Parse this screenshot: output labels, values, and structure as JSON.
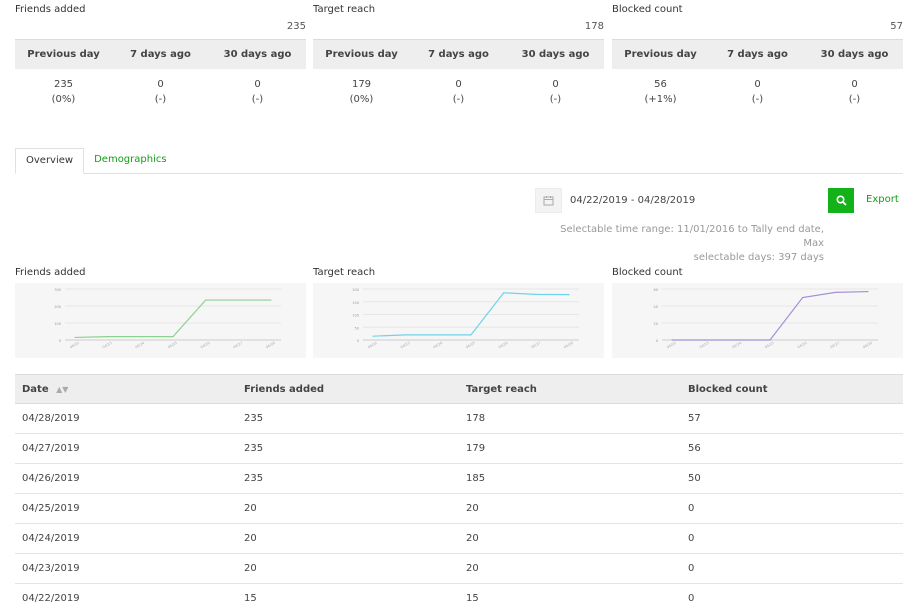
{
  "summary": {
    "headers": [
      "Previous day",
      "7 days ago",
      "30 days ago"
    ],
    "cards": [
      {
        "title": "Friends added",
        "total": "235",
        "values": [
          {
            "v": "235",
            "p": "(0%)"
          },
          {
            "v": "0",
            "p": "(-)"
          },
          {
            "v": "0",
            "p": "(-)"
          }
        ]
      },
      {
        "title": "Target reach",
        "total": "178",
        "values": [
          {
            "v": "179",
            "p": "(0%)"
          },
          {
            "v": "0",
            "p": "(-)"
          },
          {
            "v": "0",
            "p": "(-)"
          }
        ]
      },
      {
        "title": "Blocked count",
        "total": "57",
        "values": [
          {
            "v": "56",
            "p": "(+1%)"
          },
          {
            "v": "0",
            "p": "(-)"
          },
          {
            "v": "0",
            "p": "(-)"
          }
        ]
      }
    ]
  },
  "tabs": {
    "overview": "Overview",
    "demographics": "Demographics"
  },
  "date_range": {
    "value": "04/22/2019 - 04/28/2019",
    "export": "Export",
    "note1": "Selectable time range: 11/01/2016 to Tally end date, Max",
    "note2": "selectable days: 397 days"
  },
  "colors": {
    "friends": "#8fd18f",
    "reach": "#6fd3ea",
    "blocked": "#a58fd6",
    "accent": "#13b218"
  },
  "chart_data": [
    {
      "type": "line",
      "title": "Friends added",
      "color": "#8fd18f",
      "x": [
        "04/22",
        "04/23",
        "04/24",
        "04/25",
        "04/26",
        "04/27",
        "04/28"
      ],
      "values": [
        15,
        20,
        20,
        20,
        235,
        235,
        235
      ],
      "ylim": [
        0,
        300
      ],
      "yticks": [
        "0",
        "100",
        "200",
        "300"
      ]
    },
    {
      "type": "line",
      "title": "Target reach",
      "color": "#6fd3ea",
      "x": [
        "04/22",
        "04/23",
        "04/24",
        "04/25",
        "04/26",
        "04/27",
        "04/28"
      ],
      "values": [
        15,
        20,
        20,
        20,
        185,
        179,
        178
      ],
      "ylim": [
        0,
        200
      ],
      "yticks": [
        "0",
        "50",
        "100",
        "150",
        "200"
      ]
    },
    {
      "type": "line",
      "title": "Blocked count",
      "color": "#a58fd6",
      "x": [
        "04/22",
        "04/23",
        "04/24",
        "04/25",
        "04/26",
        "04/27",
        "04/28"
      ],
      "values": [
        0,
        0,
        0,
        0,
        50,
        56,
        57
      ],
      "ylim": [
        0,
        60
      ],
      "yticks": [
        "0",
        "20",
        "40",
        "60"
      ]
    }
  ],
  "table": {
    "headers": {
      "date": "Date",
      "friends": "Friends added",
      "reach": "Target reach",
      "blocked": "Blocked count"
    },
    "rows": [
      {
        "date": "04/28/2019",
        "friends": "235",
        "reach": "178",
        "blocked": "57"
      },
      {
        "date": "04/27/2019",
        "friends": "235",
        "reach": "179",
        "blocked": "56"
      },
      {
        "date": "04/26/2019",
        "friends": "235",
        "reach": "185",
        "blocked": "50"
      },
      {
        "date": "04/25/2019",
        "friends": "20",
        "reach": "20",
        "blocked": "0"
      },
      {
        "date": "04/24/2019",
        "friends": "20",
        "reach": "20",
        "blocked": "0"
      },
      {
        "date": "04/23/2019",
        "friends": "20",
        "reach": "20",
        "blocked": "0"
      },
      {
        "date": "04/22/2019",
        "friends": "15",
        "reach": "15",
        "blocked": "0"
      }
    ]
  }
}
